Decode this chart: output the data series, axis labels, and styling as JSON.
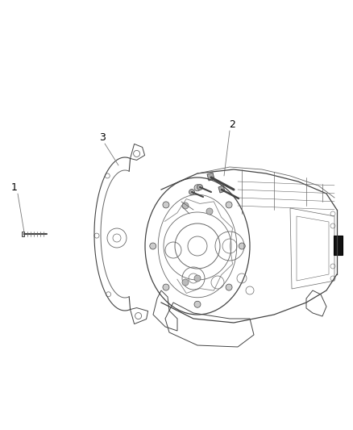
{
  "background_color": "#ffffff",
  "figsize": [
    4.38,
    5.33
  ],
  "dpi": 100,
  "label_1": "1",
  "label_2": "2",
  "label_3": "3",
  "lc": "#444444",
  "lc_light": "#888888",
  "lc_med": "#666666",
  "label_fontsize": 9,
  "callout_lw": 0.7
}
